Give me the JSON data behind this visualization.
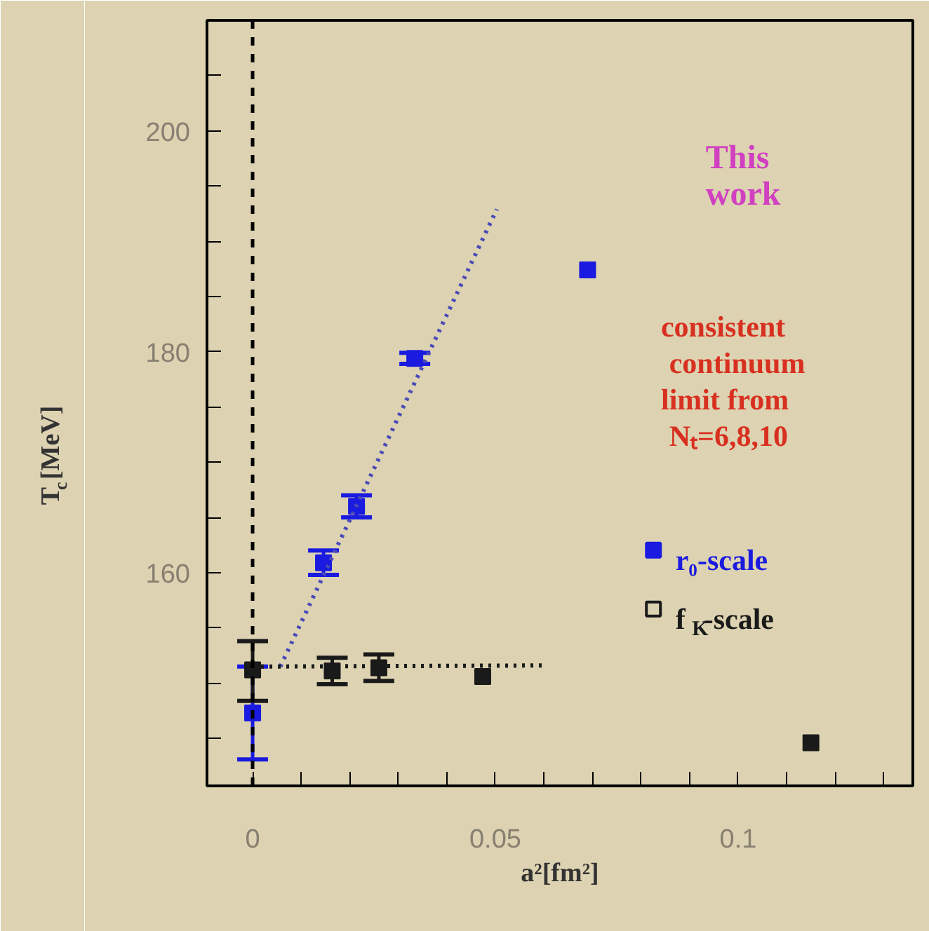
{
  "chart_data": {
    "type": "scatter",
    "xlabel": "a²[fm²]",
    "ylabel": "T$_{c}$[MeV]",
    "xlim": [
      -0.0094,
      0.136
    ],
    "ylim": [
      140.7,
      210
    ],
    "xticks": [
      {
        "value": 0,
        "label": "0"
      },
      {
        "value": 0.01,
        "label": null
      },
      {
        "value": 0.02,
        "label": null
      },
      {
        "value": 0.03,
        "label": null
      },
      {
        "value": 0.04,
        "label": null
      },
      {
        "value": 0.05,
        "label": "0.05"
      },
      {
        "value": 0.06,
        "label": null
      },
      {
        "value": 0.07,
        "label": null
      },
      {
        "value": 0.08,
        "label": null
      },
      {
        "value": 0.09,
        "label": null
      },
      {
        "value": 0.1,
        "label": "0.1"
      },
      {
        "value": 0.11,
        "label": null
      },
      {
        "value": 0.12,
        "label": null
      },
      {
        "value": 0.13,
        "label": null
      }
    ],
    "yticks": [
      {
        "value": 145,
        "label": null
      },
      {
        "value": 150,
        "label": null
      },
      {
        "value": 155,
        "label": null
      },
      160,
      {
        "value": 165,
        "label": null
      },
      {
        "value": 170,
        "label": null
      },
      {
        "value": 175,
        "label": null
      },
      180,
      {
        "value": 185,
        "label": null
      },
      {
        "value": 190,
        "label": null
      },
      {
        "value": 195,
        "label": null
      },
      200,
      {
        "value": 205,
        "label": null
      }
    ],
    "grid": false,
    "legend": "right",
    "marker": "square",
    "ref_lines": [
      {
        "axis": "x",
        "value": 0,
        "color": "#000000",
        "line_style": "dashed"
      }
    ],
    "annotations": [
      "This work",
      "consistent continuum limit from Nₜ=6,8,10"
    ],
    "series": [
      {
        "name": "r₀-scale",
        "color": "#1a1ae0",
        "x": [
          0,
          0.0146,
          0.0214,
          0.0334,
          0.069
        ],
        "values": [
          147.3,
          160.9,
          166.0,
          179.4,
          187.4
        ],
        "errors": [
          [
            143.1,
            151.5
          ],
          1.1,
          1.0,
          0.5,
          null
        ]
      },
      {
        "name": "f$_{K}$-scale",
        "color": "#1a1a1a",
        "x": [
          0,
          0.0164,
          0.026,
          0.0474,
          0.115
        ],
        "values": [
          151.2,
          151.1,
          151.4,
          150.6,
          144.6
        ],
        "errors": [
          [
            148.4,
            153.8
          ],
          1.2,
          1.2,
          null,
          null
        ]
      },
      {
        "type": "line",
        "color": "#4a4ab8",
        "line_style": "dotted",
        "marker": "none",
        "x": [
          0.0057,
          0.0503
        ],
        "values": [
          151.5,
          192.9
        ]
      },
      {
        "type": "line",
        "color": "#1a1a1a",
        "line_style": "dotted",
        "marker": "none",
        "x": [
          0,
          0.06
        ],
        "values": [
          151.5,
          151.6
        ]
      }
    ]
  }
}
